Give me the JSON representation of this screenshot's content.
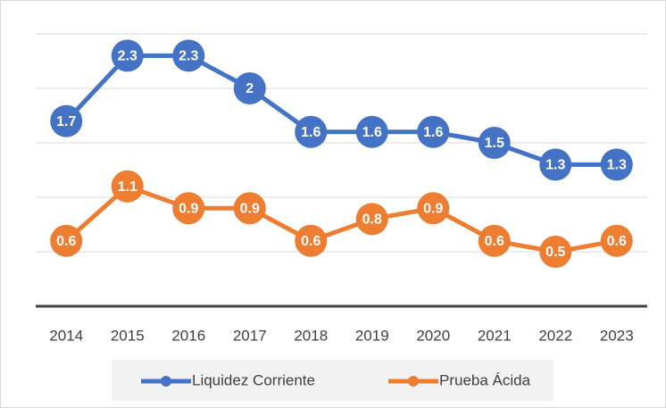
{
  "chart_data": {
    "type": "line",
    "categories": [
      "2014",
      "2015",
      "2016",
      "2017",
      "2018",
      "2019",
      "2020",
      "2021",
      "2022",
      "2023"
    ],
    "series": [
      {
        "name": "Liquidez Corriente",
        "color": "#4472c4",
        "values": [
          1.7,
          2.3,
          2.3,
          2.0,
          1.6,
          1.6,
          1.6,
          1.5,
          1.3,
          1.3
        ]
      },
      {
        "name": "Prueba Ácida",
        "color": "#ed7d31",
        "values": [
          0.6,
          1.1,
          0.9,
          0.9,
          0.6,
          0.8,
          0.9,
          0.6,
          0.5,
          0.6
        ]
      }
    ],
    "ylim": [
      0,
      2.5
    ],
    "yticks": [
      0,
      0.5,
      1,
      1.5,
      2,
      2.5
    ],
    "grid": true,
    "legend": "bottom"
  }
}
